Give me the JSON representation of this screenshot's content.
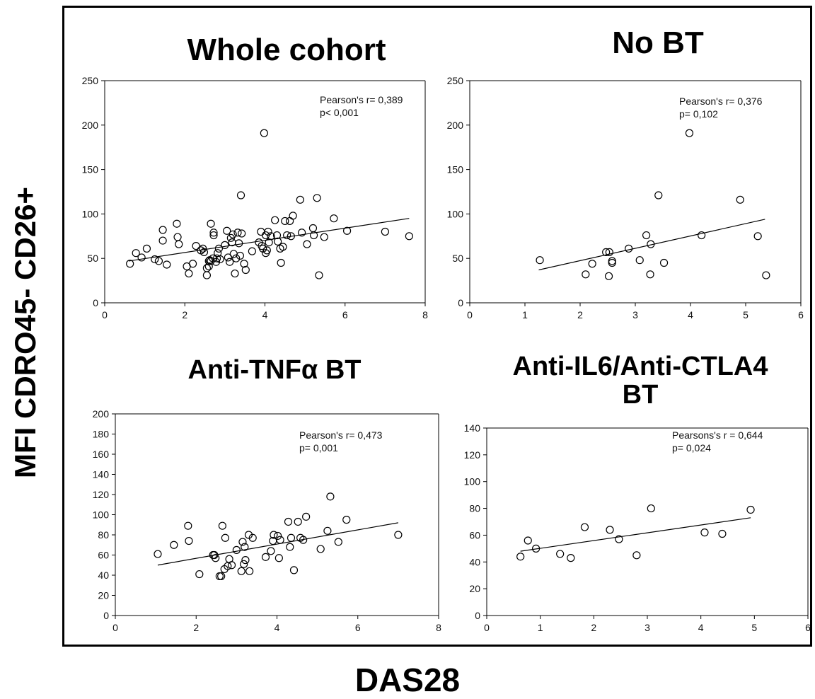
{
  "figure": {
    "ylabel": "MFI CDRO45- CD26+",
    "xlabel": "DAS28"
  },
  "chart_data": [
    {
      "type": "scatter",
      "title": "Whole cohort",
      "xlabel": "",
      "ylabel": "",
      "xlim": [
        0,
        8
      ],
      "ylim": [
        0,
        250
      ],
      "xticks": [
        0,
        2,
        4,
        6,
        8
      ],
      "yticks": [
        0,
        50,
        100,
        150,
        200,
        250
      ],
      "annotation": [
        "Pearson's r= 0,389",
        "p< 0,001"
      ],
      "trendline": [
        [
          0.6,
          47
        ],
        [
          7.6,
          95
        ]
      ],
      "points": [
        [
          0.63,
          44
        ],
        [
          0.78,
          56
        ],
        [
          0.92,
          51
        ],
        [
          1.05,
          61
        ],
        [
          1.25,
          49
        ],
        [
          1.35,
          47
        ],
        [
          1.45,
          82
        ],
        [
          1.45,
          70
        ],
        [
          1.55,
          43
        ],
        [
          1.8,
          89
        ],
        [
          1.82,
          74
        ],
        [
          1.85,
          66
        ],
        [
          2.05,
          41
        ],
        [
          2.1,
          33
        ],
        [
          2.2,
          44
        ],
        [
          2.28,
          64
        ],
        [
          2.4,
          59
        ],
        [
          2.45,
          61
        ],
        [
          2.48,
          57
        ],
        [
          2.55,
          31
        ],
        [
          2.55,
          39
        ],
        [
          2.6,
          41
        ],
        [
          2.6,
          47
        ],
        [
          2.62,
          48
        ],
        [
          2.65,
          89
        ],
        [
          2.65,
          47
        ],
        [
          2.7,
          50
        ],
        [
          2.72,
          79
        ],
        [
          2.72,
          76
        ],
        [
          2.78,
          46
        ],
        [
          2.8,
          50
        ],
        [
          2.82,
          56
        ],
        [
          2.85,
          61
        ],
        [
          2.88,
          49
        ],
        [
          3.0,
          65
        ],
        [
          3.05,
          81
        ],
        [
          3.08,
          51
        ],
        [
          3.12,
          46
        ],
        [
          3.15,
          73
        ],
        [
          3.18,
          68
        ],
        [
          3.2,
          77
        ],
        [
          3.22,
          55
        ],
        [
          3.25,
          33
        ],
        [
          3.28,
          50
        ],
        [
          3.32,
          79
        ],
        [
          3.35,
          67
        ],
        [
          3.38,
          53
        ],
        [
          3.4,
          121
        ],
        [
          3.42,
          78
        ],
        [
          3.48,
          44
        ],
        [
          3.52,
          37
        ],
        [
          3.68,
          58
        ],
        [
          3.85,
          68
        ],
        [
          3.9,
          80
        ],
        [
          3.92,
          64
        ],
        [
          3.95,
          61
        ],
        [
          3.98,
          191
        ],
        [
          4.02,
          56
        ],
        [
          4.02,
          76
        ],
        [
          4.05,
          59
        ],
        [
          4.08,
          80
        ],
        [
          4.1,
          68
        ],
        [
          4.15,
          75
        ],
        [
          4.25,
          93
        ],
        [
          4.3,
          76
        ],
        [
          4.32,
          69
        ],
        [
          4.38,
          61
        ],
        [
          4.4,
          45
        ],
        [
          4.45,
          63
        ],
        [
          4.5,
          92
        ],
        [
          4.55,
          76
        ],
        [
          4.62,
          92
        ],
        [
          4.65,
          75
        ],
        [
          4.7,
          98
        ],
        [
          4.88,
          116
        ],
        [
          4.92,
          79
        ],
        [
          5.05,
          66
        ],
        [
          5.2,
          84
        ],
        [
          5.22,
          76
        ],
        [
          5.3,
          118
        ],
        [
          5.35,
          31
        ],
        [
          5.48,
          74
        ],
        [
          5.72,
          95
        ],
        [
          6.05,
          81
        ],
        [
          7.0,
          80
        ],
        [
          7.6,
          75
        ]
      ]
    },
    {
      "type": "scatter",
      "title": "No BT",
      "xlabel": "",
      "ylabel": "",
      "xlim": [
        0,
        6
      ],
      "ylim": [
        0,
        250
      ],
      "xticks": [
        0,
        1,
        2,
        3,
        4,
        5,
        6
      ],
      "yticks": [
        0,
        50,
        100,
        150,
        200,
        250
      ],
      "annotation": [
        "Pearson's r= 0,376",
        "p= 0,102"
      ],
      "trendline": [
        [
          1.25,
          37
        ],
        [
          5.35,
          94
        ]
      ],
      "points": [
        [
          1.27,
          48
        ],
        [
          2.1,
          32
        ],
        [
          2.22,
          44
        ],
        [
          2.47,
          57
        ],
        [
          2.52,
          30
        ],
        [
          2.53,
          57
        ],
        [
          2.58,
          45
        ],
        [
          2.58,
          47
        ],
        [
          2.88,
          61
        ],
        [
          3.08,
          48
        ],
        [
          3.2,
          76
        ],
        [
          3.27,
          32
        ],
        [
          3.28,
          66
        ],
        [
          3.42,
          121
        ],
        [
          3.52,
          45
        ],
        [
          3.98,
          191
        ],
        [
          4.2,
          76
        ],
        [
          4.9,
          116
        ],
        [
          5.22,
          75
        ],
        [
          5.37,
          31
        ]
      ]
    },
    {
      "type": "scatter",
      "title": "Anti-TNFα  BT",
      "xlabel": "",
      "ylabel": "",
      "xlim": [
        0,
        8
      ],
      "ylim": [
        0,
        200
      ],
      "xticks": [
        0,
        2,
        4,
        6,
        8
      ],
      "yticks": [
        0,
        20,
        40,
        60,
        80,
        100,
        120,
        140,
        160,
        180,
        200
      ],
      "annotation": [
        "Pearson's r= 0,473",
        "p= 0,001"
      ],
      "trendline": [
        [
          1.05,
          50
        ],
        [
          7.0,
          92
        ]
      ],
      "points": [
        [
          1.05,
          61
        ],
        [
          1.45,
          70
        ],
        [
          1.8,
          89
        ],
        [
          1.82,
          74
        ],
        [
          2.08,
          41
        ],
        [
          2.42,
          60
        ],
        [
          2.45,
          60
        ],
        [
          2.48,
          57
        ],
        [
          2.58,
          39
        ],
        [
          2.62,
          39
        ],
        [
          2.65,
          89
        ],
        [
          2.7,
          46
        ],
        [
          2.72,
          77
        ],
        [
          2.78,
          49
        ],
        [
          2.82,
          56
        ],
        [
          2.88,
          50
        ],
        [
          3.0,
          65
        ],
        [
          3.12,
          44
        ],
        [
          3.15,
          73
        ],
        [
          3.18,
          51
        ],
        [
          3.2,
          68
        ],
        [
          3.22,
          55
        ],
        [
          3.3,
          80
        ],
        [
          3.32,
          44
        ],
        [
          3.4,
          77
        ],
        [
          3.72,
          58
        ],
        [
          3.85,
          64
        ],
        [
          3.9,
          74
        ],
        [
          3.92,
          80
        ],
        [
          4.02,
          79
        ],
        [
          4.05,
          57
        ],
        [
          4.08,
          75
        ],
        [
          4.28,
          93
        ],
        [
          4.32,
          68
        ],
        [
          4.35,
          77
        ],
        [
          4.42,
          45
        ],
        [
          4.52,
          93
        ],
        [
          4.58,
          77
        ],
        [
          4.65,
          75
        ],
        [
          4.72,
          98
        ],
        [
          5.08,
          66
        ],
        [
          5.25,
          84
        ],
        [
          5.32,
          118
        ],
        [
          5.52,
          73
        ],
        [
          5.72,
          95
        ],
        [
          7.0,
          80
        ]
      ]
    },
    {
      "type": "scatter",
      "title": "Anti-IL6/Anti-CTLA4 BT",
      "xlabel": "",
      "ylabel": "",
      "xlim": [
        0,
        6
      ],
      "ylim": [
        0,
        140
      ],
      "xticks": [
        0,
        1,
        2,
        3,
        4,
        5,
        6
      ],
      "yticks": [
        0,
        20,
        40,
        60,
        80,
        100,
        120,
        140
      ],
      "annotation": [
        "Pearsons's r = 0,644",
        "p= 0,024"
      ],
      "trendline": [
        [
          0.63,
          48
        ],
        [
          4.93,
          73
        ]
      ],
      "points": [
        [
          0.63,
          44
        ],
        [
          0.77,
          56
        ],
        [
          0.92,
          50
        ],
        [
          1.37,
          46
        ],
        [
          1.57,
          43
        ],
        [
          1.83,
          66
        ],
        [
          2.3,
          64
        ],
        [
          2.47,
          57
        ],
        [
          2.8,
          45
        ],
        [
          3.07,
          80
        ],
        [
          4.07,
          62
        ],
        [
          4.4,
          61
        ],
        [
          4.93,
          79
        ]
      ]
    }
  ]
}
